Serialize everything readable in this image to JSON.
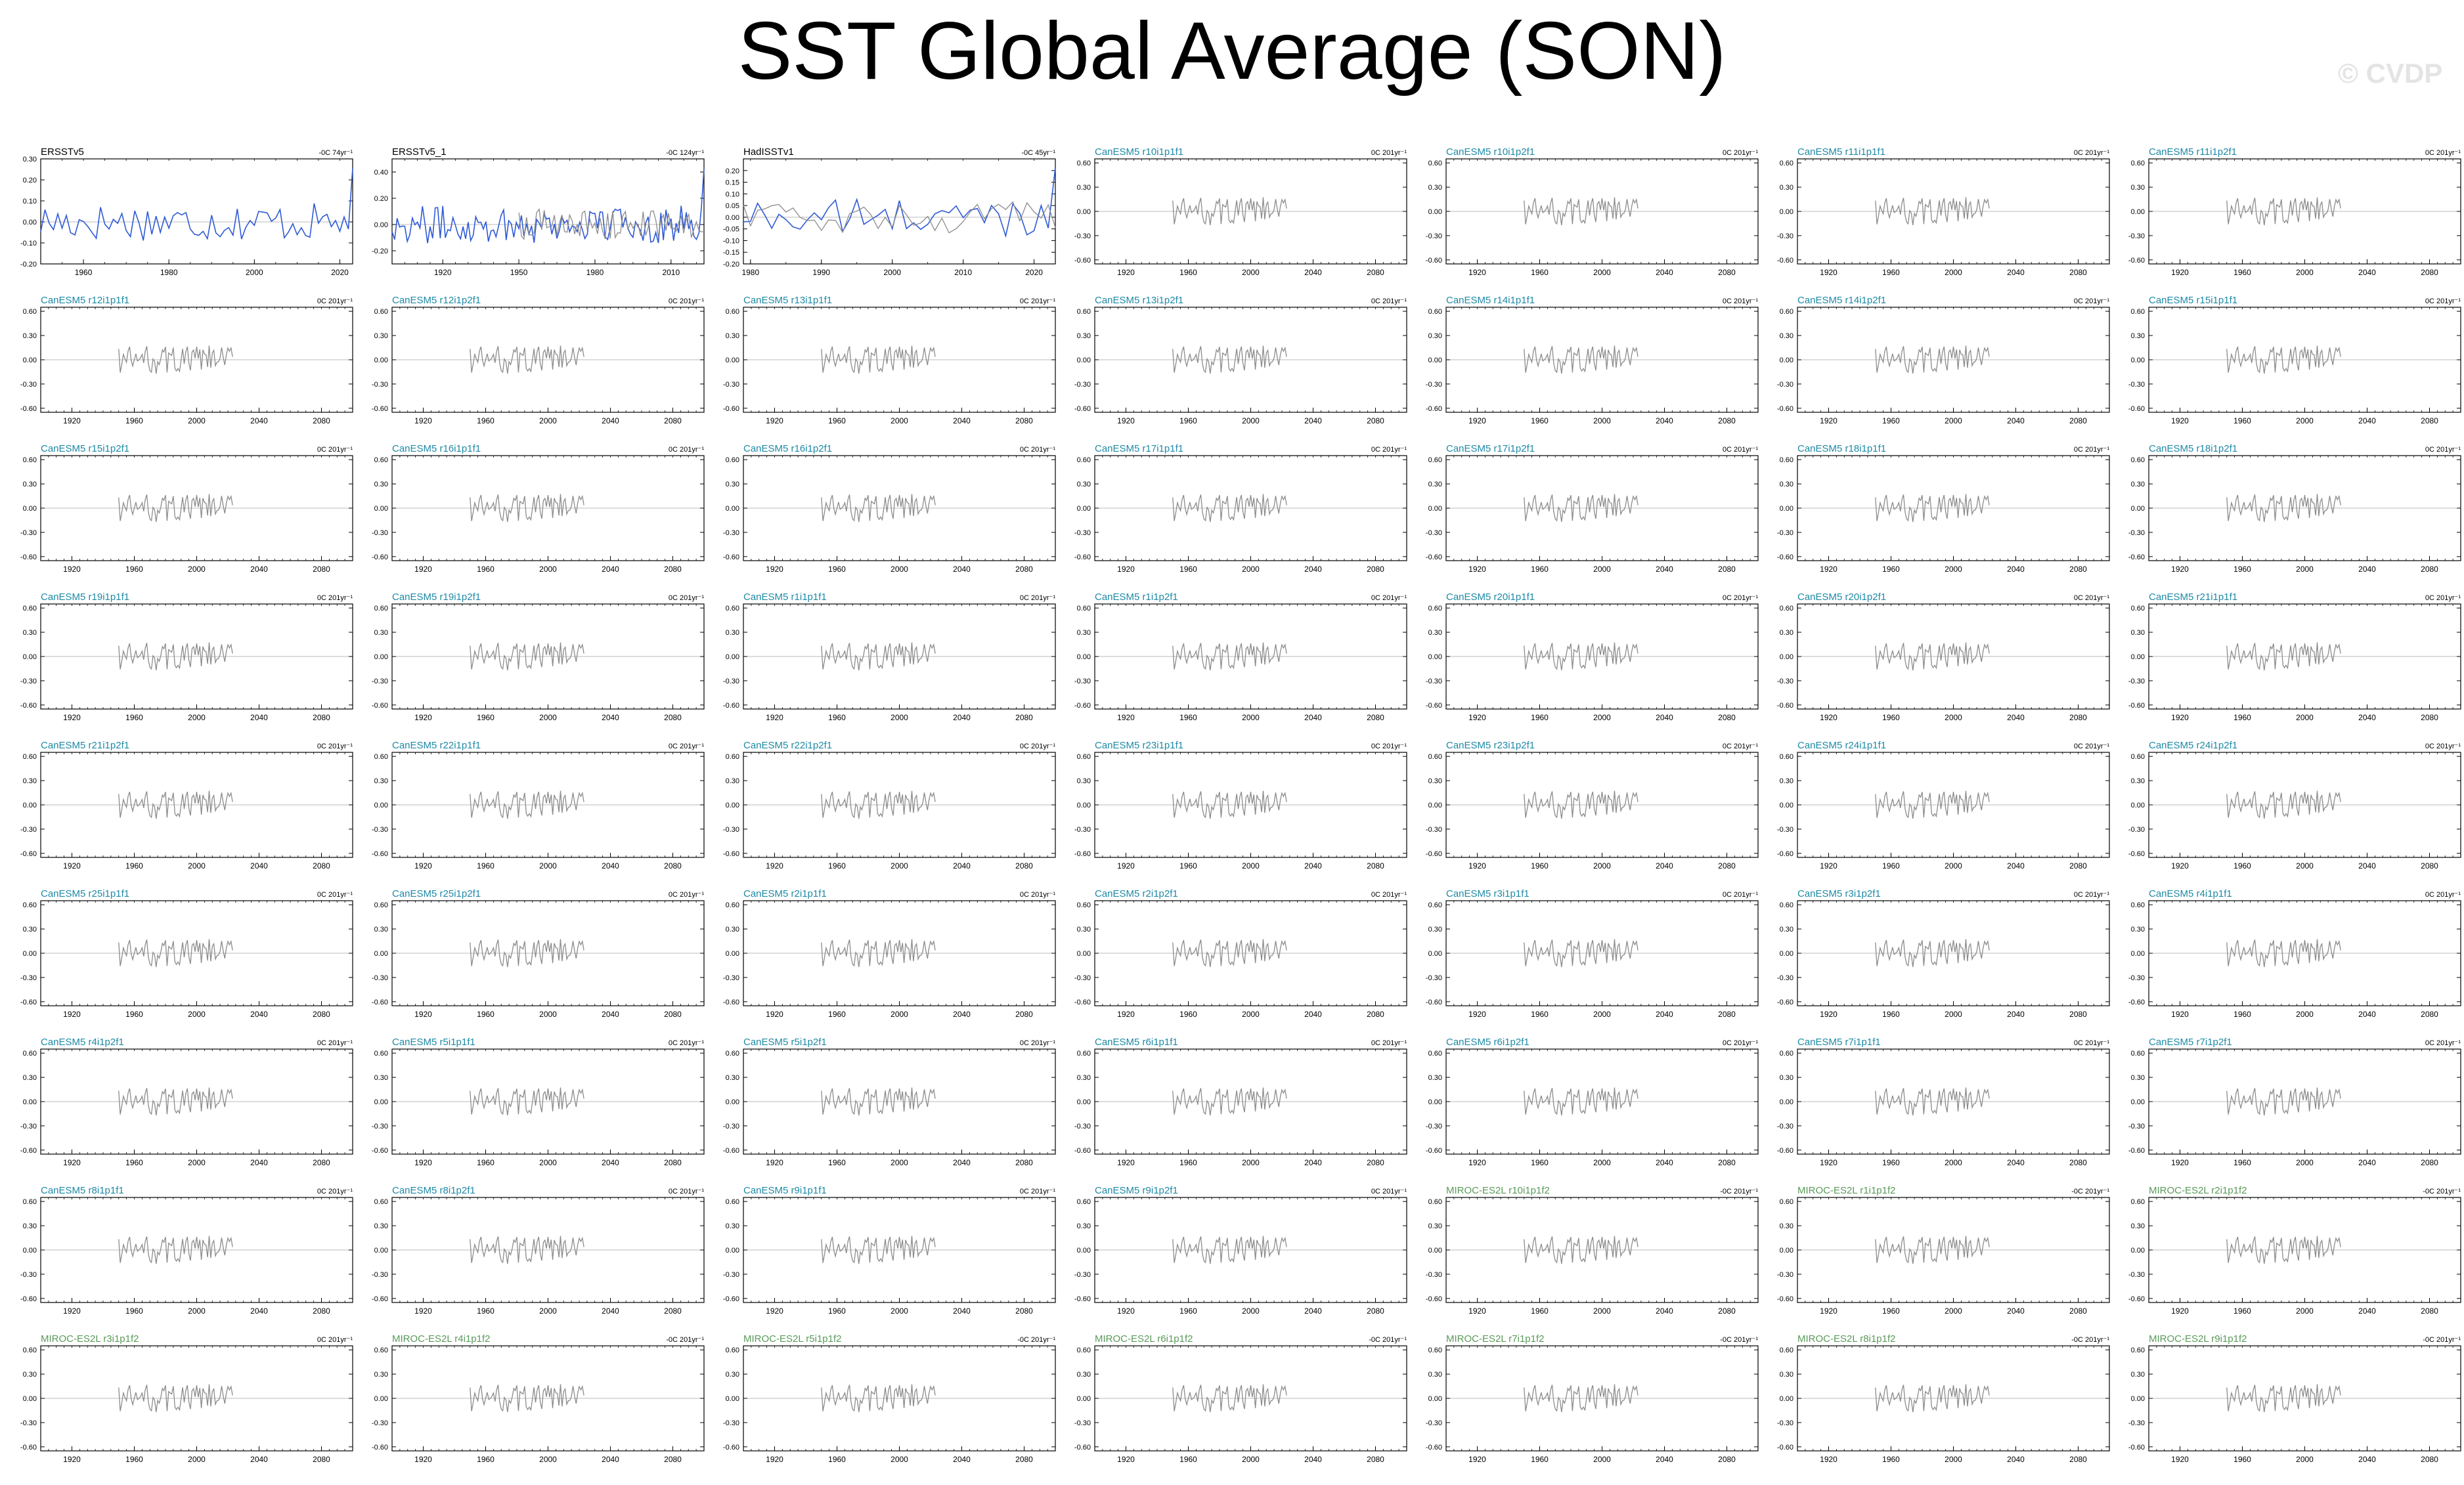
{
  "title": "SST Global Average (SON)",
  "watermark": "© CVDP",
  "colors": {
    "model_line": "#2f5ad6",
    "obs_line": "#8c8c8c",
    "canesm_title": "#1e8aa6",
    "miroc_title": "#5a9a5a",
    "obs_title": "#000000",
    "zero_line": "#bbbbbb"
  },
  "chart_data": {
    "type": "line",
    "layout": "panel-grid",
    "rows": 9,
    "cols": 7,
    "obs_overlay_series": "ERSSTv5",
    "tick_sets": {
      "obs_ersst": {
        "xticks": [
          1960,
          1980,
          2000,
          2020
        ],
        "yticks": [
          -0.2,
          -0.1,
          0.0,
          0.1,
          0.2,
          0.3
        ]
      },
      "obs_ersst1": {
        "xticks": [
          1920,
          1950,
          1980,
          2010
        ],
        "yticks": [
          -0.2,
          0.0,
          0.2,
          0.4
        ]
      },
      "obs_had": {
        "xticks": [
          1980,
          1990,
          2000,
          2010,
          2020
        ],
        "yticks": [
          -0.2,
          -0.15,
          -0.1,
          -0.05,
          0.0,
          0.05,
          0.1,
          0.15,
          0.2
        ]
      },
      "model": {
        "xticks": [
          1920,
          1960,
          2000,
          2040,
          2080
        ],
        "yticks": [
          -0.6,
          -0.3,
          0.0,
          0.3,
          0.6
        ]
      }
    },
    "panels": [
      {
        "name": "ERSSTv5",
        "trend": "-0C 74yr⁻¹",
        "group": "obs",
        "xlim": [
          1950,
          2023
        ],
        "ylim": [
          -0.2,
          0.3
        ],
        "ticks": "obs_ersst"
      },
      {
        "name": "ERSSTv5_1",
        "trend": "-0C 124yr⁻¹",
        "group": "obs",
        "xlim": [
          1900,
          2023
        ],
        "ylim": [
          -0.3,
          0.5
        ],
        "ticks": "obs_ersst1"
      },
      {
        "name": "HadISSTv1",
        "trend": "-0C 45yr⁻¹",
        "group": "obs",
        "xlim": [
          1979,
          2023
        ],
        "ylim": [
          -0.2,
          0.25
        ],
        "ticks": "obs_had"
      },
      {
        "name": "CanESM5 r10i1p1f1",
        "trend": "0C 201yr⁻¹",
        "group": "canesm",
        "xlim": [
          1900,
          2100
        ],
        "ylim": [
          -0.65,
          0.65
        ],
        "ticks": "model"
      },
      {
        "name": "CanESM5 r10i1p2f1",
        "trend": "0C 201yr⁻¹",
        "group": "canesm",
        "xlim": [
          1900,
          2100
        ],
        "ylim": [
          -0.65,
          0.65
        ],
        "ticks": "model"
      },
      {
        "name": "CanESM5 r11i1p1f1",
        "trend": "0C 201yr⁻¹",
        "group": "canesm",
        "xlim": [
          1900,
          2100
        ],
        "ylim": [
          -0.65,
          0.65
        ],
        "ticks": "model"
      },
      {
        "name": "CanESM5 r11i1p2f1",
        "trend": "0C 201yr⁻¹",
        "group": "canesm",
        "xlim": [
          1900,
          2100
        ],
        "ylim": [
          -0.65,
          0.65
        ],
        "ticks": "model"
      },
      {
        "name": "CanESM5 r12i1p1f1",
        "trend": "0C 201yr⁻¹",
        "group": "canesm",
        "xlim": [
          1900,
          2100
        ],
        "ylim": [
          -0.65,
          0.65
        ],
        "ticks": "model"
      },
      {
        "name": "CanESM5 r12i1p2f1",
        "trend": "0C 201yr⁻¹",
        "group": "canesm",
        "xlim": [
          1900,
          2100
        ],
        "ylim": [
          -0.65,
          0.65
        ],
        "ticks": "model"
      },
      {
        "name": "CanESM5 r13i1p1f1",
        "trend": "0C 201yr⁻¹",
        "group": "canesm",
        "xlim": [
          1900,
          2100
        ],
        "ylim": [
          -0.65,
          0.65
        ],
        "ticks": "model"
      },
      {
        "name": "CanESM5 r13i1p2f1",
        "trend": "0C 201yr⁻¹",
        "group": "canesm",
        "xlim": [
          1900,
          2100
        ],
        "ylim": [
          -0.65,
          0.65
        ],
        "ticks": "model"
      },
      {
        "name": "CanESM5 r14i1p1f1",
        "trend": "0C 201yr⁻¹",
        "group": "canesm",
        "xlim": [
          1900,
          2100
        ],
        "ylim": [
          -0.65,
          0.65
        ],
        "ticks": "model"
      },
      {
        "name": "CanESM5 r14i1p2f1",
        "trend": "0C 201yr⁻¹",
        "group": "canesm",
        "xlim": [
          1900,
          2100
        ],
        "ylim": [
          -0.65,
          0.65
        ],
        "ticks": "model"
      },
      {
        "name": "CanESM5 r15i1p1f1",
        "trend": "0C 201yr⁻¹",
        "group": "canesm",
        "xlim": [
          1900,
          2100
        ],
        "ylim": [
          -0.65,
          0.65
        ],
        "ticks": "model"
      },
      {
        "name": "CanESM5 r15i1p2f1",
        "trend": "0C 201yr⁻¹",
        "group": "canesm",
        "xlim": [
          1900,
          2100
        ],
        "ylim": [
          -0.65,
          0.65
        ],
        "ticks": "model"
      },
      {
        "name": "CanESM5 r16i1p1f1",
        "trend": "0C 201yr⁻¹",
        "group": "canesm",
        "xlim": [
          1900,
          2100
        ],
        "ylim": [
          -0.65,
          0.65
        ],
        "ticks": "model"
      },
      {
        "name": "CanESM5 r16i1p2f1",
        "trend": "0C 201yr⁻¹",
        "group": "canesm",
        "xlim": [
          1900,
          2100
        ],
        "ylim": [
          -0.65,
          0.65
        ],
        "ticks": "model"
      },
      {
        "name": "CanESM5 r17i1p1f1",
        "trend": "0C 201yr⁻¹",
        "group": "canesm",
        "xlim": [
          1900,
          2100
        ],
        "ylim": [
          -0.65,
          0.65
        ],
        "ticks": "model"
      },
      {
        "name": "CanESM5 r17i1p2f1",
        "trend": "0C 201yr⁻¹",
        "group": "canesm",
        "xlim": [
          1900,
          2100
        ],
        "ylim": [
          -0.65,
          0.65
        ],
        "ticks": "model"
      },
      {
        "name": "CanESM5 r18i1p1f1",
        "trend": "0C 201yr⁻¹",
        "group": "canesm",
        "xlim": [
          1900,
          2100
        ],
        "ylim": [
          -0.65,
          0.65
        ],
        "ticks": "model"
      },
      {
        "name": "CanESM5 r18i1p2f1",
        "trend": "0C 201yr⁻¹",
        "group": "canesm",
        "xlim": [
          1900,
          2100
        ],
        "ylim": [
          -0.65,
          0.65
        ],
        "ticks": "model"
      },
      {
        "name": "CanESM5 r19i1p1f1",
        "trend": "0C 201yr⁻¹",
        "group": "canesm",
        "xlim": [
          1900,
          2100
        ],
        "ylim": [
          -0.65,
          0.65
        ],
        "ticks": "model"
      },
      {
        "name": "CanESM5 r19i1p2f1",
        "trend": "0C 201yr⁻¹",
        "group": "canesm",
        "xlim": [
          1900,
          2100
        ],
        "ylim": [
          -0.65,
          0.65
        ],
        "ticks": "model"
      },
      {
        "name": "CanESM5 r1i1p1f1",
        "trend": "0C 201yr⁻¹",
        "group": "canesm",
        "xlim": [
          1900,
          2100
        ],
        "ylim": [
          -0.65,
          0.65
        ],
        "ticks": "model"
      },
      {
        "name": "CanESM5 r1i1p2f1",
        "trend": "0C 201yr⁻¹",
        "group": "canesm",
        "xlim": [
          1900,
          2100
        ],
        "ylim": [
          -0.65,
          0.65
        ],
        "ticks": "model"
      },
      {
        "name": "CanESM5 r20i1p1f1",
        "trend": "0C 201yr⁻¹",
        "group": "canesm",
        "xlim": [
          1900,
          2100
        ],
        "ylim": [
          -0.65,
          0.65
        ],
        "ticks": "model"
      },
      {
        "name": "CanESM5 r20i1p2f1",
        "trend": "0C 201yr⁻¹",
        "group": "canesm",
        "xlim": [
          1900,
          2100
        ],
        "ylim": [
          -0.65,
          0.65
        ],
        "ticks": "model"
      },
      {
        "name": "CanESM5 r21i1p1f1",
        "trend": "0C 201yr⁻¹",
        "group": "canesm",
        "xlim": [
          1900,
          2100
        ],
        "ylim": [
          -0.65,
          0.65
        ],
        "ticks": "model"
      },
      {
        "name": "CanESM5 r21i1p2f1",
        "trend": "0C 201yr⁻¹",
        "group": "canesm",
        "xlim": [
          1900,
          2100
        ],
        "ylim": [
          -0.65,
          0.65
        ],
        "ticks": "model"
      },
      {
        "name": "CanESM5 r22i1p1f1",
        "trend": "0C 201yr⁻¹",
        "group": "canesm",
        "xlim": [
          1900,
          2100
        ],
        "ylim": [
          -0.65,
          0.65
        ],
        "ticks": "model"
      },
      {
        "name": "CanESM5 r22i1p2f1",
        "trend": "0C 201yr⁻¹",
        "group": "canesm",
        "xlim": [
          1900,
          2100
        ],
        "ylim": [
          -0.65,
          0.65
        ],
        "ticks": "model"
      },
      {
        "name": "CanESM5 r23i1p1f1",
        "trend": "0C 201yr⁻¹",
        "group": "canesm",
        "xlim": [
          1900,
          2100
        ],
        "ylim": [
          -0.65,
          0.65
        ],
        "ticks": "model"
      },
      {
        "name": "CanESM5 r23i1p2f1",
        "trend": "0C 201yr⁻¹",
        "group": "canesm",
        "xlim": [
          1900,
          2100
        ],
        "ylim": [
          -0.65,
          0.65
        ],
        "ticks": "model"
      },
      {
        "name": "CanESM5 r24i1p1f1",
        "trend": "0C 201yr⁻¹",
        "group": "canesm",
        "xlim": [
          1900,
          2100
        ],
        "ylim": [
          -0.65,
          0.65
        ],
        "ticks": "model"
      },
      {
        "name": "CanESM5 r24i1p2f1",
        "trend": "0C 201yr⁻¹",
        "group": "canesm",
        "xlim": [
          1900,
          2100
        ],
        "ylim": [
          -0.65,
          0.65
        ],
        "ticks": "model"
      },
      {
        "name": "CanESM5 r25i1p1f1",
        "trend": "0C 201yr⁻¹",
        "group": "canesm",
        "xlim": [
          1900,
          2100
        ],
        "ylim": [
          -0.65,
          0.65
        ],
        "ticks": "model"
      },
      {
        "name": "CanESM5 r25i1p2f1",
        "trend": "0C 201yr⁻¹",
        "group": "canesm",
        "xlim": [
          1900,
          2100
        ],
        "ylim": [
          -0.65,
          0.65
        ],
        "ticks": "model"
      },
      {
        "name": "CanESM5 r2i1p1f1",
        "trend": "0C 201yr⁻¹",
        "group": "canesm",
        "xlim": [
          1900,
          2100
        ],
        "ylim": [
          -0.65,
          0.65
        ],
        "ticks": "model"
      },
      {
        "name": "CanESM5 r2i1p2f1",
        "trend": "0C 201yr⁻¹",
        "group": "canesm",
        "xlim": [
          1900,
          2100
        ],
        "ylim": [
          -0.65,
          0.65
        ],
        "ticks": "model"
      },
      {
        "name": "CanESM5 r3i1p1f1",
        "trend": "0C 201yr⁻¹",
        "group": "canesm",
        "xlim": [
          1900,
          2100
        ],
        "ylim": [
          -0.65,
          0.65
        ],
        "ticks": "model"
      },
      {
        "name": "CanESM5 r3i1p2f1",
        "trend": "0C 201yr⁻¹",
        "group": "canesm",
        "xlim": [
          1900,
          2100
        ],
        "ylim": [
          -0.65,
          0.65
        ],
        "ticks": "model"
      },
      {
        "name": "CanESM5 r4i1p1f1",
        "trend": "0C 201yr⁻¹",
        "group": "canesm",
        "xlim": [
          1900,
          2100
        ],
        "ylim": [
          -0.65,
          0.65
        ],
        "ticks": "model"
      },
      {
        "name": "CanESM5 r4i1p2f1",
        "trend": "0C 201yr⁻¹",
        "group": "canesm",
        "xlim": [
          1900,
          2100
        ],
        "ylim": [
          -0.65,
          0.65
        ],
        "ticks": "model"
      },
      {
        "name": "CanESM5 r5i1p1f1",
        "trend": "0C 201yr⁻¹",
        "group": "canesm",
        "xlim": [
          1900,
          2100
        ],
        "ylim": [
          -0.65,
          0.65
        ],
        "ticks": "model"
      },
      {
        "name": "CanESM5 r5i1p2f1",
        "trend": "0C 201yr⁻¹",
        "group": "canesm",
        "xlim": [
          1900,
          2100
        ],
        "ylim": [
          -0.65,
          0.65
        ],
        "ticks": "model"
      },
      {
        "name": "CanESM5 r6i1p1f1",
        "trend": "0C 201yr⁻¹",
        "group": "canesm",
        "xlim": [
          1900,
          2100
        ],
        "ylim": [
          -0.65,
          0.65
        ],
        "ticks": "model"
      },
      {
        "name": "CanESM5 r6i1p2f1",
        "trend": "0C 201yr⁻¹",
        "group": "canesm",
        "xlim": [
          1900,
          2100
        ],
        "ylim": [
          -0.65,
          0.65
        ],
        "ticks": "model"
      },
      {
        "name": "CanESM5 r7i1p1f1",
        "trend": "0C 201yr⁻¹",
        "group": "canesm",
        "xlim": [
          1900,
          2100
        ],
        "ylim": [
          -0.65,
          0.65
        ],
        "ticks": "model"
      },
      {
        "name": "CanESM5 r7i1p2f1",
        "trend": "0C 201yr⁻¹",
        "group": "canesm",
        "xlim": [
          1900,
          2100
        ],
        "ylim": [
          -0.65,
          0.65
        ],
        "ticks": "model"
      },
      {
        "name": "CanESM5 r8i1p1f1",
        "trend": "0C 201yr⁻¹",
        "group": "canesm",
        "xlim": [
          1900,
          2100
        ],
        "ylim": [
          -0.65,
          0.65
        ],
        "ticks": "model"
      },
      {
        "name": "CanESM5 r8i1p2f1",
        "trend": "0C 201yr⁻¹",
        "group": "canesm",
        "xlim": [
          1900,
          2100
        ],
        "ylim": [
          -0.65,
          0.65
        ],
        "ticks": "model"
      },
      {
        "name": "CanESM5 r9i1p1f1",
        "trend": "0C 201yr⁻¹",
        "group": "canesm",
        "xlim": [
          1900,
          2100
        ],
        "ylim": [
          -0.65,
          0.65
        ],
        "ticks": "model"
      },
      {
        "name": "CanESM5 r9i1p2f1",
        "trend": "0C 201yr⁻¹",
        "group": "canesm",
        "xlim": [
          1900,
          2100
        ],
        "ylim": [
          -0.65,
          0.65
        ],
        "ticks": "model"
      },
      {
        "name": "MIROC-ES2L r10i1p1f2",
        "trend": "-0C 201yr⁻¹",
        "group": "miroc",
        "xlim": [
          1900,
          2100
        ],
        "ylim": [
          -0.65,
          0.65
        ],
        "ticks": "model"
      },
      {
        "name": "MIROC-ES2L r1i1p1f2",
        "trend": "-0C 201yr⁻¹",
        "group": "miroc",
        "xlim": [
          1900,
          2100
        ],
        "ylim": [
          -0.65,
          0.65
        ],
        "ticks": "model"
      },
      {
        "name": "MIROC-ES2L r2i1p1f2",
        "trend": "-0C 201yr⁻¹",
        "group": "miroc",
        "xlim": [
          1900,
          2100
        ],
        "ylim": [
          -0.65,
          0.65
        ],
        "ticks": "model"
      },
      {
        "name": "MIROC-ES2L r3i1p1f2",
        "trend": "0C 201yr⁻¹",
        "group": "miroc",
        "xlim": [
          1900,
          2100
        ],
        "ylim": [
          -0.65,
          0.65
        ],
        "ticks": "model"
      },
      {
        "name": "MIROC-ES2L r4i1p1f2",
        "trend": "-0C 201yr⁻¹",
        "group": "miroc",
        "xlim": [
          1900,
          2100
        ],
        "ylim": [
          -0.65,
          0.65
        ],
        "ticks": "model"
      },
      {
        "name": "MIROC-ES2L r5i1p1f2",
        "trend": "-0C 201yr⁻¹",
        "group": "miroc",
        "xlim": [
          1900,
          2100
        ],
        "ylim": [
          -0.65,
          0.65
        ],
        "ticks": "model"
      },
      {
        "name": "MIROC-ES2L r6i1p1f2",
        "trend": "-0C 201yr⁻¹",
        "group": "miroc",
        "xlim": [
          1900,
          2100
        ],
        "ylim": [
          -0.65,
          0.65
        ],
        "ticks": "model"
      },
      {
        "name": "MIROC-ES2L r7i1p1f2",
        "trend": "-0C 201yr⁻¹",
        "group": "miroc",
        "xlim": [
          1900,
          2100
        ],
        "ylim": [
          -0.65,
          0.65
        ],
        "ticks": "model"
      },
      {
        "name": "MIROC-ES2L r8i1p1f2",
        "trend": "-0C 201yr⁻¹",
        "group": "miroc",
        "xlim": [
          1900,
          2100
        ],
        "ylim": [
          -0.65,
          0.65
        ],
        "ticks": "model"
      },
      {
        "name": "MIROC-ES2L r9i1p1f2",
        "trend": "-0C 201yr⁻¹",
        "group": "miroc",
        "xlim": [
          1900,
          2100
        ],
        "ylim": [
          -0.65,
          0.65
        ],
        "ticks": "model"
      }
    ]
  }
}
